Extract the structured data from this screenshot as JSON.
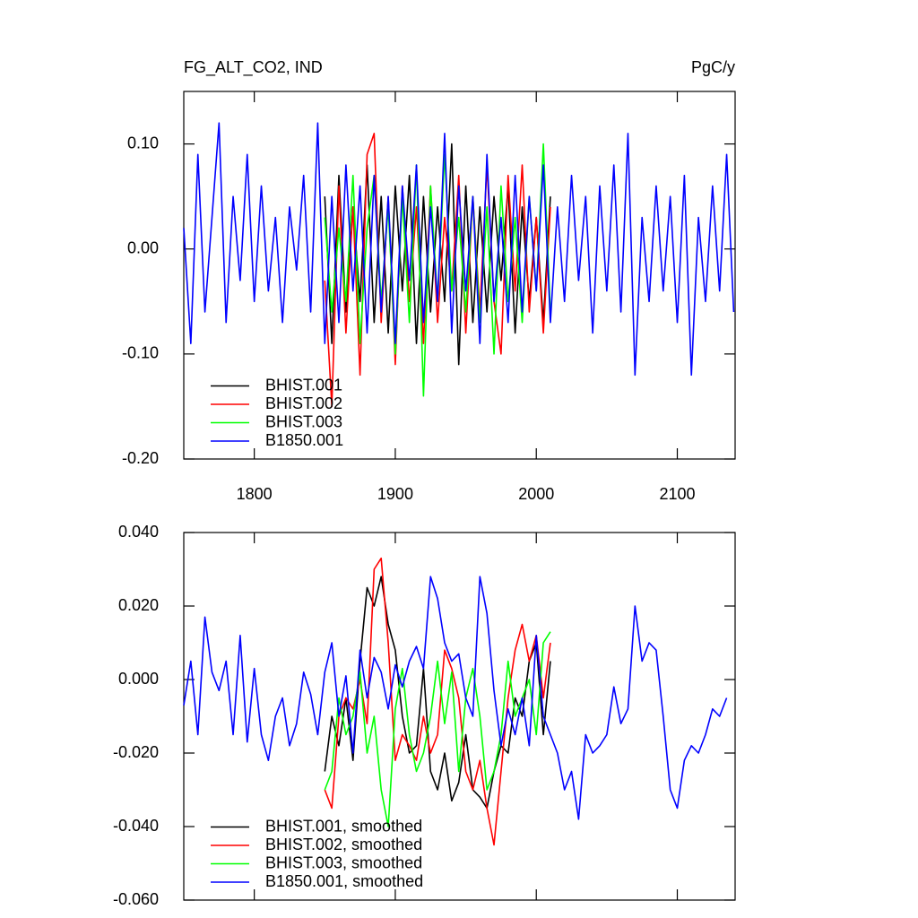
{
  "chart_data": [
    {
      "type": "line",
      "title": "FG_ALT_CO2, IND",
      "units": "PgC/y",
      "xlim": [
        1750,
        2141
      ],
      "xticks": [
        1800,
        1900,
        2000,
        2100
      ],
      "ylim": [
        -0.2,
        0.15
      ],
      "yticks": [
        {
          "value": -0.2,
          "label": "-0.20"
        },
        {
          "value": -0.1,
          "label": "-0.10"
        },
        {
          "value": 0,
          "label": "0.00"
        },
        {
          "value": 0.1,
          "label": "0.10"
        }
      ],
      "legend": "lower left",
      "series": [
        {
          "name": "BHIST.001",
          "color": "#000000",
          "x": [
            1850,
            1855,
            1860,
            1865,
            1870,
            1875,
            1880,
            1885,
            1890,
            1895,
            1900,
            1905,
            1910,
            1915,
            1920,
            1925,
            1930,
            1935,
            1940,
            1945,
            1950,
            1955,
            1960,
            1965,
            1970,
            1975,
            1980,
            1985,
            1990,
            1995,
            2000,
            2005,
            2010
          ],
          "values": [
            0.05,
            -0.09,
            0.07,
            -0.06,
            0.04,
            -0.05,
            0.08,
            -0.07,
            0.05,
            -0.08,
            0.06,
            -0.04,
            0.07,
            -0.09,
            0.05,
            -0.06,
            0.04,
            -0.05,
            0.1,
            -0.11,
            0.06,
            -0.07,
            0.04,
            -0.06,
            0.05,
            -0.03,
            0.06,
            -0.08,
            0.04,
            -0.05,
            0.03,
            -0.07,
            0.05
          ]
        },
        {
          "name": "BHIST.002",
          "color": "#ff0000",
          "x": [
            1850,
            1855,
            1860,
            1865,
            1870,
            1875,
            1880,
            1885,
            1890,
            1895,
            1900,
            1905,
            1910,
            1915,
            1920,
            1925,
            1930,
            1935,
            1940,
            1945,
            1950,
            1955,
            1960,
            1965,
            1970,
            1975,
            1980,
            1985,
            1990,
            1995,
            2000,
            2005,
            2010
          ],
          "values": [
            -0.03,
            -0.15,
            0.06,
            -0.08,
            0.04,
            -0.12,
            0.09,
            0.11,
            -0.07,
            0.05,
            -0.11,
            0.06,
            -0.05,
            0.04,
            -0.09,
            0.06,
            -0.07,
            0.03,
            -0.04,
            0.07,
            -0.08,
            0.05,
            -0.06,
            0.08,
            -0.05,
            -0.1,
            0.07,
            -0.04,
            0.08,
            -0.06,
            0.03,
            -0.08,
            0.04
          ]
        },
        {
          "name": "BHIST.003",
          "color": "#00ff00",
          "x": [
            1850,
            1855,
            1860,
            1865,
            1870,
            1875,
            1880,
            1885,
            1890,
            1895,
            1900,
            1905,
            1910,
            1915,
            1920,
            1925,
            1930,
            1935,
            1940,
            1945,
            1950,
            1955,
            1960,
            1965,
            1970,
            1975,
            1980,
            1985,
            1990,
            1995,
            2000,
            2005,
            2010
          ],
          "values": [
            0.03,
            -0.06,
            0.02,
            -0.05,
            0.07,
            -0.09,
            0.02,
            0.07,
            -0.05,
            0.04,
            -0.1,
            0.05,
            -0.07,
            0.08,
            -0.14,
            0.06,
            -0.05,
            0.09,
            -0.04,
            0.03,
            -0.06,
            0.05,
            -0.07,
            0.04,
            -0.1,
            0.06,
            -0.05,
            0.03,
            -0.07,
            0.05,
            -0.04,
            0.1,
            -0.06
          ]
        },
        {
          "name": "B1850.001",
          "color": "#0000ff",
          "x": [
            1750,
            1755,
            1760,
            1765,
            1770,
            1775,
            1780,
            1785,
            1790,
            1795,
            1800,
            1805,
            1810,
            1815,
            1820,
            1825,
            1830,
            1835,
            1840,
            1845,
            1850,
            1855,
            1860,
            1865,
            1870,
            1875,
            1880,
            1885,
            1890,
            1895,
            1900,
            1905,
            1910,
            1915,
            1920,
            1925,
            1930,
            1935,
            1940,
            1945,
            1950,
            1955,
            1960,
            1965,
            1970,
            1975,
            1980,
            1985,
            1990,
            1995,
            2000,
            2005,
            2010,
            2015,
            2020,
            2025,
            2030,
            2035,
            2040,
            2045,
            2050,
            2055,
            2060,
            2065,
            2070,
            2075,
            2080,
            2085,
            2090,
            2095,
            2100,
            2105,
            2110,
            2115,
            2120,
            2125,
            2130,
            2135,
            2140
          ],
          "values": [
            0.02,
            -0.09,
            0.09,
            -0.06,
            0.03,
            0.12,
            -0.07,
            0.05,
            -0.03,
            0.09,
            -0.05,
            0.06,
            -0.04,
            0.03,
            -0.07,
            0.04,
            -0.02,
            0.07,
            -0.06,
            0.12,
            -0.09,
            0.05,
            -0.07,
            0.08,
            -0.04,
            0.06,
            -0.08,
            0.07,
            -0.06,
            0.05,
            -0.09,
            0.06,
            -0.03,
            0.08,
            -0.07,
            0.04,
            -0.05,
            0.11,
            -0.08,
            0.06,
            -0.04,
            0.05,
            -0.09,
            0.09,
            -0.05,
            0.03,
            -0.07,
            0.07,
            -0.06,
            0.05,
            -0.04,
            0.08,
            -0.07,
            0.04,
            -0.05,
            0.07,
            -0.03,
            0.05,
            -0.08,
            0.06,
            -0.04,
            0.08,
            -0.06,
            0.11,
            -0.12,
            0.03,
            -0.05,
            0.06,
            -0.04,
            0.05,
            -0.07,
            0.07,
            -0.12,
            0.03,
            -0.05,
            0.06,
            -0.04,
            0.09,
            -0.06
          ]
        }
      ]
    },
    {
      "type": "line",
      "xlim": [
        1750,
        2141
      ],
      "ylim": [
        -0.06,
        0.04
      ],
      "yticks": [
        {
          "value": -0.06,
          "label": "-0.060"
        },
        {
          "value": -0.04,
          "label": "-0.040"
        },
        {
          "value": -0.02,
          "label": "-0.020"
        },
        {
          "value": 0,
          "label": "0.000"
        },
        {
          "value": 0.02,
          "label": "0.020"
        },
        {
          "value": 0.04,
          "label": "0.040"
        }
      ],
      "legend": "lower left",
      "series": [
        {
          "name": "BHIST.001, smoothed",
          "color": "#000000",
          "x": [
            1850,
            1855,
            1860,
            1865,
            1870,
            1875,
            1880,
            1885,
            1890,
            1895,
            1900,
            1905,
            1910,
            1915,
            1920,
            1925,
            1930,
            1935,
            1940,
            1945,
            1950,
            1955,
            1960,
            1965,
            1970,
            1975,
            1980,
            1985,
            1990,
            1995,
            2000,
            2005,
            2010
          ],
          "values": [
            -0.025,
            -0.01,
            -0.018,
            -0.005,
            -0.022,
            0.005,
            0.025,
            0.02,
            0.028,
            0.015,
            0.008,
            -0.01,
            -0.02,
            -0.018,
            0.003,
            -0.025,
            -0.03,
            -0.02,
            -0.033,
            -0.028,
            -0.015,
            -0.03,
            -0.032,
            -0.035,
            -0.025,
            -0.018,
            -0.02,
            -0.005,
            -0.01,
            0.005,
            0.01,
            -0.015,
            0.005
          ]
        },
        {
          "name": "BHIST.002, smoothed",
          "color": "#ff0000",
          "x": [
            1850,
            1855,
            1860,
            1865,
            1870,
            1875,
            1880,
            1885,
            1890,
            1895,
            1900,
            1905,
            1910,
            1915,
            1920,
            1925,
            1930,
            1935,
            1940,
            1945,
            1950,
            1955,
            1960,
            1965,
            1970,
            1975,
            1980,
            1985,
            1990,
            1995,
            2000,
            2005,
            2010
          ],
          "values": [
            -0.03,
            -0.035,
            -0.01,
            -0.005,
            -0.008,
            0,
            -0.012,
            0.03,
            0.033,
            0.01,
            -0.022,
            -0.015,
            -0.018,
            -0.022,
            -0.01,
            -0.02,
            -0.015,
            0.008,
            0.003,
            -0.005,
            -0.025,
            -0.03,
            -0.022,
            -0.035,
            -0.045,
            -0.025,
            -0.005,
            0.008,
            0.015,
            0.005,
            0.012,
            -0.005,
            0.01
          ]
        },
        {
          "name": "BHIST.003, smoothed",
          "color": "#00ff00",
          "x": [
            1850,
            1855,
            1860,
            1865,
            1870,
            1875,
            1880,
            1885,
            1890,
            1895,
            1900,
            1905,
            1910,
            1915,
            1920,
            1925,
            1930,
            1935,
            1940,
            1945,
            1950,
            1955,
            1960,
            1965,
            1970,
            1975,
            1980,
            1985,
            1990,
            1995,
            2000,
            2005,
            2010
          ],
          "values": [
            -0.03,
            -0.025,
            -0.005,
            -0.015,
            -0.01,
            0.002,
            -0.02,
            -0.01,
            -0.03,
            -0.04,
            -0.008,
            0.003,
            -0.015,
            -0.025,
            -0.02,
            -0.01,
            0.005,
            -0.012,
            0.002,
            -0.025,
            -0.005,
            0.003,
            -0.01,
            -0.03,
            -0.025,
            -0.015,
            0.005,
            -0.01,
            -0.005,
            0,
            -0.015,
            0.01,
            0.013
          ]
        },
        {
          "name": "B1850.001, smoothed",
          "color": "#0000ff",
          "x": [
            1750,
            1755,
            1760,
            1765,
            1770,
            1775,
            1780,
            1785,
            1790,
            1795,
            1800,
            1805,
            1810,
            1815,
            1820,
            1825,
            1830,
            1835,
            1840,
            1845,
            1850,
            1855,
            1860,
            1865,
            1870,
            1875,
            1880,
            1885,
            1890,
            1895,
            1900,
            1905,
            1910,
            1915,
            1920,
            1925,
            1930,
            1935,
            1940,
            1945,
            1950,
            1955,
            1960,
            1965,
            1970,
            1975,
            1980,
            1985,
            1990,
            1995,
            2000,
            2005,
            2010,
            2015,
            2020,
            2025,
            2030,
            2035,
            2040,
            2045,
            2050,
            2055,
            2060,
            2065,
            2070,
            2075,
            2080,
            2085,
            2090,
            2095,
            2100,
            2105,
            2110,
            2115,
            2120,
            2125,
            2130,
            2135
          ],
          "values": [
            -0.007,
            0.005,
            -0.015,
            0.017,
            0.002,
            -0.003,
            0.005,
            -0.015,
            0.012,
            -0.017,
            0.003,
            -0.015,
            -0.022,
            -0.01,
            -0.005,
            -0.018,
            -0.012,
            0.002,
            -0.004,
            -0.015,
            0.002,
            0.01,
            -0.01,
            0.001,
            -0.02,
            0.008,
            -0.005,
            0.006,
            0.002,
            -0.008,
            0.004,
            -0.002,
            0.005,
            0.009,
            0.003,
            0.028,
            0.022,
            0.01,
            0.005,
            0.007,
            -0.005,
            -0.01,
            0.028,
            0.018,
            -0.003,
            -0.018,
            -0.008,
            -0.015,
            -0.005,
            -0.018,
            0.012,
            -0.01,
            -0.015,
            -0.02,
            -0.03,
            -0.025,
            -0.038,
            -0.015,
            -0.02,
            -0.018,
            -0.015,
            -0.002,
            -0.012,
            -0.008,
            0.02,
            0.005,
            0.01,
            0.008,
            -0.01,
            -0.03,
            -0.035,
            -0.022,
            -0.018,
            -0.02,
            -0.015,
            -0.008,
            -0.01,
            -0.005
          ]
        }
      ]
    }
  ]
}
